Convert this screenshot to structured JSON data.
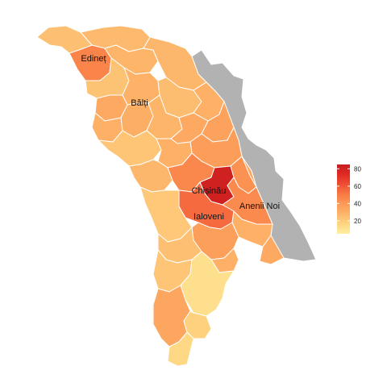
{
  "map": {
    "labels": {
      "edinet": "Edineț",
      "balti": "Bălți",
      "chisinau": "Chișinău",
      "anenii_noi": "Anenii Noi",
      "ialoveni": "Ialoveni"
    },
    "regions": [
      {
        "key": "ocnita",
        "value": 26
      },
      {
        "key": "briceni",
        "value": 24
      },
      {
        "key": "edinet",
        "value": 47
      },
      {
        "key": "donduseni",
        "value": 28
      },
      {
        "key": "soroca",
        "value": 27
      },
      {
        "key": "riscani",
        "value": 23
      },
      {
        "key": "balti",
        "value": 33
      },
      {
        "key": "drochia",
        "value": 29
      },
      {
        "key": "glodeni",
        "value": 30
      },
      {
        "key": "floresti",
        "value": 25
      },
      {
        "key": "falesti",
        "value": 31
      },
      {
        "key": "singerei",
        "value": 28
      },
      {
        "key": "soldanesti",
        "value": 30
      },
      {
        "key": "rezina",
        "value": 36
      },
      {
        "key": "telenesti",
        "value": 33
      },
      {
        "key": "ungheni",
        "value": 22
      },
      {
        "key": "orhei",
        "value": 38
      },
      {
        "key": "calarasi",
        "value": 30
      },
      {
        "key": "criuleni",
        "value": 42
      },
      {
        "key": "dubasari",
        "value": 34
      },
      {
        "key": "straseni",
        "value": 46
      },
      {
        "key": "nisporeni",
        "value": 27
      },
      {
        "key": "chisinau",
        "value": 82
      },
      {
        "key": "anenii_noi",
        "value": 45
      },
      {
        "key": "ialoveni",
        "value": 55
      },
      {
        "key": "hincesti",
        "value": 21
      },
      {
        "key": "causeni",
        "value": 30
      },
      {
        "key": "stefan_voda",
        "value": 33
      },
      {
        "key": "cimislia",
        "value": 37
      },
      {
        "key": "basarabeasca",
        "value": 30
      },
      {
        "key": "leova",
        "value": 24
      },
      {
        "key": "cantemir",
        "value": 22
      },
      {
        "key": "gagauzia",
        "value": 12
      },
      {
        "key": "cahul",
        "value": 34
      },
      {
        "key": "taraclia",
        "value": 18
      },
      {
        "key": "vulcanesti",
        "value": 15
      }
    ],
    "no_data_color": "#b2b2b2"
  },
  "legend": {
    "range": [
      5,
      85
    ],
    "ticks": [
      20,
      40,
      60,
      80
    ],
    "tick_labels": [
      "20",
      "40",
      "60",
      "80"
    ],
    "colors": [
      "#ffefa0",
      "#fed581",
      "#fdb56a",
      "#fc9a57",
      "#f97a44",
      "#ef4e33",
      "#e02a24",
      "#c81e1e"
    ]
  }
}
